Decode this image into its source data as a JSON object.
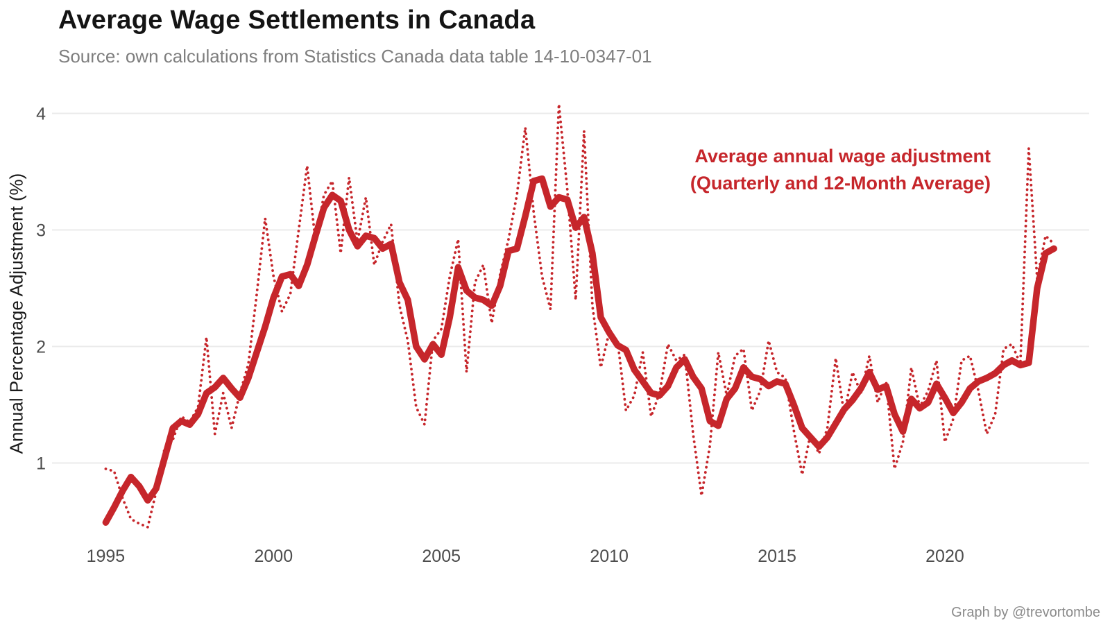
{
  "header": {
    "title": "Average Wage Settlements in Canada",
    "subtitle": "Source: own calculations from Statistics Canada data table 14-10-0347-01"
  },
  "annotation": {
    "line1": "Average annual wage adjustment",
    "line2": "(Quarterly and 12-Month Average)"
  },
  "credit": "Graph by @trevortombe",
  "colors": {
    "accent_red": "#c6262b",
    "gridline": "#ebebeb",
    "axis_text": "#4d4d4d",
    "title_black": "#141414",
    "subtitle_gray": "#7e7e7e",
    "credit_gray": "#8a8a8a"
  },
  "chart_data": {
    "type": "line",
    "title": "Average Wage Settlements in Canada",
    "xlabel": "",
    "ylabel": "Annual Percentage Adjustment (%)",
    "xlim": [
      1993.4,
      2024.3
    ],
    "ylim": [
      0.39,
      4.14
    ],
    "xticks": [
      1995,
      2000,
      2005,
      2010,
      2015,
      2020
    ],
    "yticks": [
      1,
      2,
      3,
      4
    ],
    "grid": "horizontal-only",
    "legend_position": "none (in-plot red annotation instead)",
    "x_start": 1995.0,
    "x_step": 0.25,
    "series": [
      {
        "name": "Quarterly average wage adjustment",
        "style": "dotted",
        "values": [
          0.95,
          0.93,
          0.7,
          0.52,
          0.48,
          0.45,
          0.75,
          1.12,
          1.2,
          1.4,
          1.35,
          1.48,
          2.08,
          1.25,
          1.6,
          1.3,
          1.6,
          1.85,
          2.45,
          3.1,
          2.6,
          2.3,
          2.45,
          3.0,
          3.55,
          2.9,
          3.3,
          3.42,
          2.8,
          3.45,
          2.9,
          3.28,
          2.7,
          2.9,
          3.05,
          2.35,
          2.05,
          1.48,
          1.33,
          2.05,
          2.15,
          2.6,
          2.92,
          1.78,
          2.55,
          2.7,
          2.2,
          2.62,
          2.92,
          3.3,
          3.88,
          3.15,
          2.6,
          2.32,
          4.08,
          3.35,
          2.4,
          3.85,
          2.35,
          1.82,
          2.12,
          2.05,
          1.45,
          1.58,
          1.95,
          1.4,
          1.6,
          2.02,
          1.88,
          1.93,
          1.25,
          0.72,
          1.15,
          1.95,
          1.58,
          1.92,
          1.98,
          1.45,
          1.62,
          2.05,
          1.78,
          1.73,
          1.28,
          0.9,
          1.25,
          1.08,
          1.3,
          1.9,
          1.42,
          1.78,
          1.6,
          1.92,
          1.52,
          1.7,
          0.95,
          1.18,
          1.82,
          1.48,
          1.62,
          1.88,
          1.18,
          1.38,
          1.88,
          1.92,
          1.62,
          1.25,
          1.42,
          1.98,
          2.02,
          1.85,
          3.7,
          2.58,
          2.95,
          2.88
        ]
      },
      {
        "name": "12-month average wage adjustment",
        "style": "solid",
        "values": [
          0.49,
          0.62,
          0.76,
          0.88,
          0.8,
          0.68,
          0.78,
          1.04,
          1.3,
          1.36,
          1.33,
          1.42,
          1.6,
          1.65,
          1.73,
          1.64,
          1.56,
          1.73,
          1.95,
          2.17,
          2.42,
          2.6,
          2.62,
          2.52,
          2.7,
          2.95,
          3.19,
          3.3,
          3.25,
          3.0,
          2.86,
          2.95,
          2.93,
          2.84,
          2.88,
          2.55,
          2.4,
          2.0,
          1.89,
          2.02,
          1.93,
          2.25,
          2.68,
          2.48,
          2.42,
          2.4,
          2.35,
          2.52,
          2.82,
          2.84,
          3.12,
          3.42,
          3.44,
          3.2,
          3.28,
          3.26,
          3.02,
          3.11,
          2.8,
          2.25,
          2.12,
          2.01,
          1.97,
          1.8,
          1.7,
          1.6,
          1.58,
          1.66,
          1.82,
          1.89,
          1.74,
          1.64,
          1.36,
          1.32,
          1.55,
          1.64,
          1.82,
          1.74,
          1.72,
          1.66,
          1.7,
          1.68,
          1.5,
          1.3,
          1.22,
          1.14,
          1.22,
          1.34,
          1.46,
          1.54,
          1.64,
          1.78,
          1.63,
          1.66,
          1.42,
          1.27,
          1.55,
          1.47,
          1.52,
          1.68,
          1.56,
          1.43,
          1.52,
          1.64,
          1.7,
          1.73,
          1.77,
          1.84,
          1.88,
          1.84,
          1.86,
          2.5,
          2.8,
          2.84
        ]
      }
    ]
  }
}
